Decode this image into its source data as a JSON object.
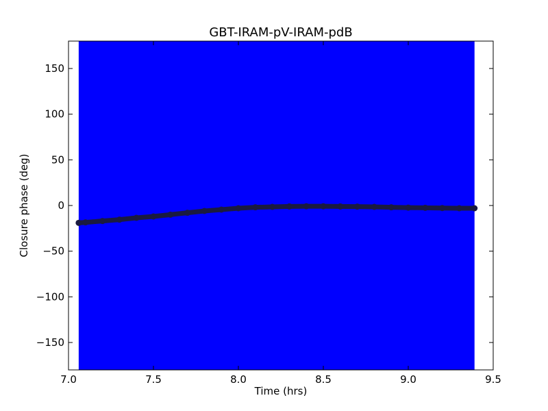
{
  "chart_data": {
    "type": "scatter",
    "title": "GBT-IRAM-pV-IRAM-pdB",
    "xlabel": "Time (hrs)",
    "ylabel": "Closure phase (deg)",
    "xlim": [
      7.0,
      9.5
    ],
    "ylim": [
      -180,
      180
    ],
    "xticks": [
      7.0,
      7.5,
      8.0,
      8.5,
      9.0,
      9.5
    ],
    "xtick_labels": [
      "7.0",
      "7.5",
      "8.0",
      "8.5",
      "9.0",
      "9.5"
    ],
    "yticks": [
      150,
      100,
      50,
      0,
      -50,
      -100,
      -150
    ],
    "ytick_labels": [
      "150",
      "100",
      "50",
      "0",
      "−50",
      "−100",
      "−150"
    ],
    "grid": false,
    "error_band": {
      "color": "#0000ff",
      "x_range": [
        7.06,
        9.39
      ],
      "y_range": [
        -180,
        180
      ]
    },
    "series": [
      {
        "color": "#1a1a40",
        "marker": "circle",
        "x": [
          7.06,
          7.1,
          7.2,
          7.3,
          7.4,
          7.5,
          7.6,
          7.7,
          7.8,
          7.9,
          8.0,
          8.1,
          8.2,
          8.3,
          8.4,
          8.5,
          8.6,
          8.7,
          8.8,
          8.9,
          9.0,
          9.1,
          9.2,
          9.3,
          9.39
        ],
        "values": [
          -19,
          -18.5,
          -17,
          -15.5,
          -13.5,
          -12,
          -10,
          -8,
          -6,
          -4.5,
          -3,
          -2,
          -1.5,
          -1,
          -0.8,
          -0.8,
          -1,
          -1.2,
          -1.5,
          -2,
          -2.3,
          -2.5,
          -2.8,
          -3,
          -3
        ]
      }
    ]
  }
}
